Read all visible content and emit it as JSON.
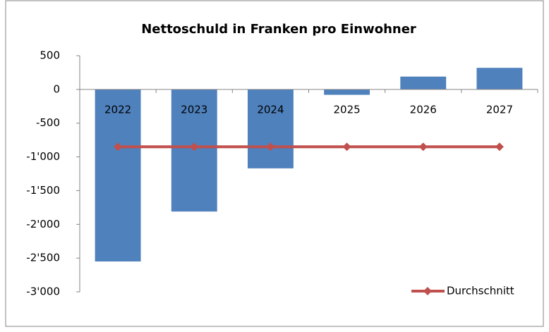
{
  "chart_data": {
    "type": "bar",
    "title": "Nettoschuld in Franken pro Einwohner",
    "categories": [
      "2022",
      "2023",
      "2024",
      "2025",
      "2026",
      "2027"
    ],
    "series": [
      {
        "type": "bar",
        "color": "#4f81bd",
        "values": [
          -2550,
          -1810,
          -1170,
          -80,
          190,
          320
        ]
      },
      {
        "type": "line",
        "name": "Durchschnitt",
        "color": "#c0504d",
        "values": [
          -850,
          -850,
          -850,
          -850,
          -850,
          -850
        ]
      }
    ],
    "ylim": [
      -3000,
      500
    ],
    "yticks": [
      500,
      0,
      -500,
      {
        "value": -1000,
        "label": "-1'000"
      },
      {
        "value": -1500,
        "label": "-1'500"
      },
      {
        "value": -2000,
        "label": "-2'000"
      },
      {
        "value": -2500,
        "label": "-2'500"
      },
      {
        "value": -3000,
        "label": "-3'000"
      }
    ],
    "grid": false,
    "legend": "bottom-right"
  }
}
